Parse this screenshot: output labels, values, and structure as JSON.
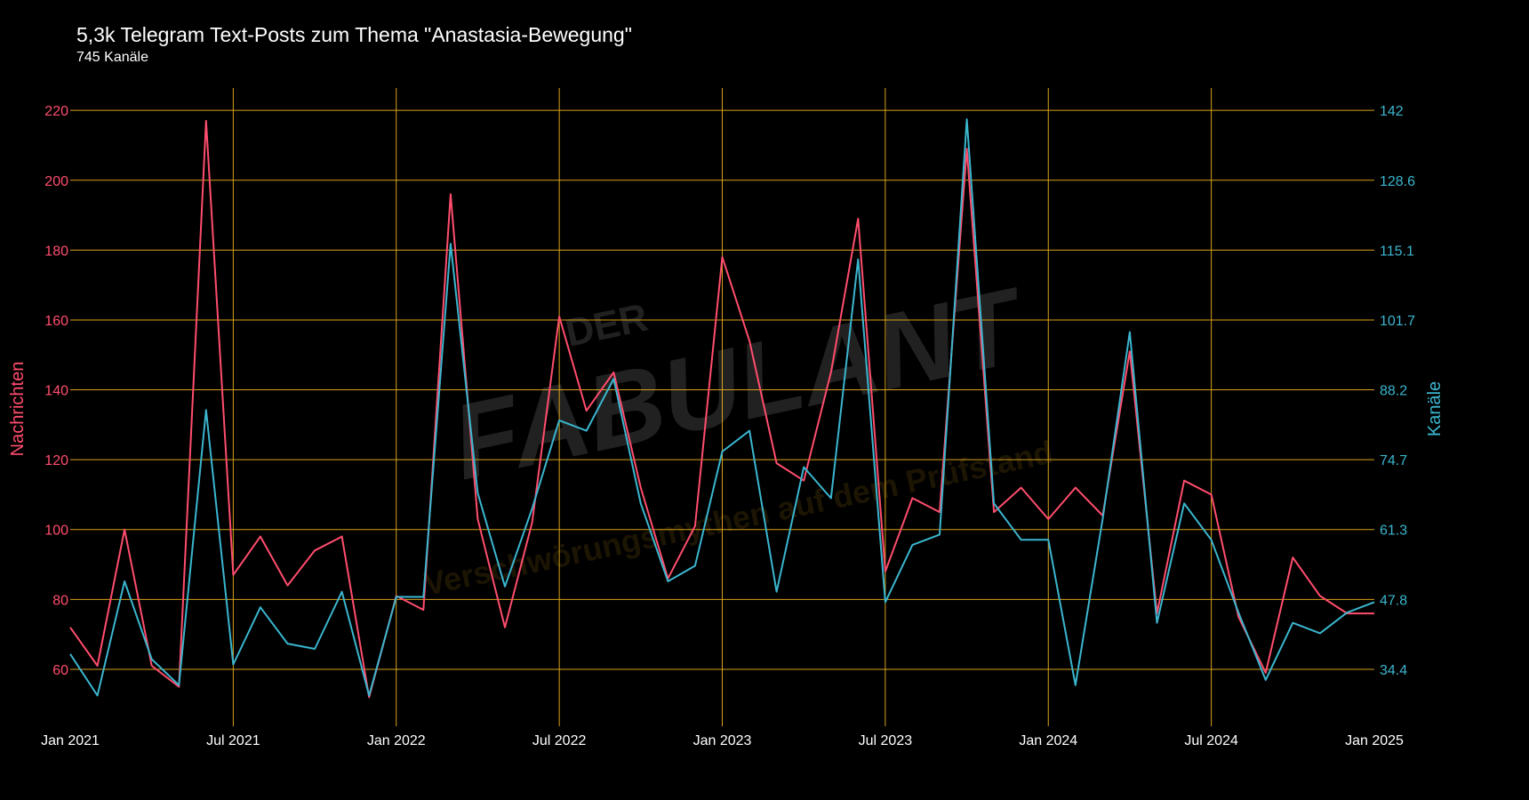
{
  "colors": {
    "nachrichten": "#ff4d6d",
    "kanaele": "#3bb6cf",
    "grid": "#d9a21b",
    "background": "#000000"
  },
  "watermark": {
    "line1": "DER",
    "line2": "FABULANT",
    "tagline": "Verschwörungsmythen auf dem Prüfstand"
  },
  "chart_data": {
    "type": "line",
    "title": "5,3k Telegram Text-Posts zum Thema \"Anastasia-Bewegung\"",
    "subtitle": "745 Kanäle",
    "xlabel": "",
    "ylabel": "Nachrichten",
    "y2label": "Kanäle",
    "x_start": "2021-01",
    "x_ticks": [
      "Jan 2021",
      "Jul 2021",
      "Jan 2022",
      "Jul 2022",
      "Jan 2023",
      "Jul 2023",
      "Jan 2024",
      "Jul 2024",
      "Jan 2025"
    ],
    "x_tick_index": [
      0,
      6,
      12,
      18,
      24,
      30,
      36,
      42,
      48
    ],
    "ylim": [
      43.7,
      226.4
    ],
    "y_ticks": [
      60,
      80,
      100,
      120,
      140,
      160,
      180,
      200,
      220
    ],
    "y2lim": [
      23.1,
      146.0
    ],
    "y2_ticks": [
      "34.4",
      "47.8",
      "61.3",
      "74.7",
      "88.2",
      "101.7",
      "115.1",
      "128.6",
      "142"
    ],
    "grid": true,
    "series": [
      {
        "name": "Nachrichten",
        "axis": "left",
        "values": [
          72,
          61,
          100,
          61,
          55,
          217,
          87,
          98,
          84,
          94,
          98,
          52,
          81,
          77,
          196,
          103,
          72,
          102,
          161,
          134,
          145,
          112,
          86,
          101,
          178,
          154,
          119,
          114,
          145,
          189,
          88,
          109,
          105,
          209,
          105,
          112,
          103,
          112,
          104,
          151,
          76,
          114,
          110,
          75,
          59,
          92,
          81,
          76,
          76
        ]
      },
      {
        "name": "Kanäle",
        "axis": "right",
        "values": [
          37,
          29,
          51,
          36,
          31,
          84,
          35,
          46,
          39,
          38,
          49,
          29,
          48,
          48,
          116,
          68,
          50,
          65,
          82,
          80,
          90,
          66,
          51,
          54,
          76,
          80,
          49,
          73,
          67,
          113,
          47,
          58,
          60,
          140,
          66,
          59,
          59,
          31,
          63,
          99,
          43,
          66,
          59,
          45,
          32,
          43,
          41,
          45,
          47
        ]
      }
    ]
  }
}
